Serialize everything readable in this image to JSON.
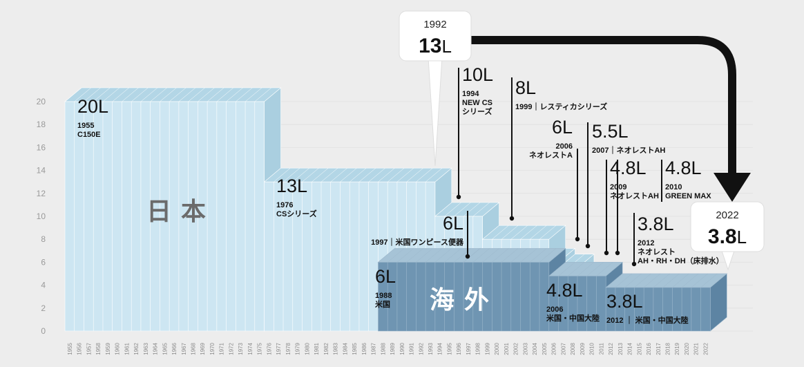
{
  "chart_data": {
    "type": "bar",
    "ylim": [
      0,
      22
    ],
    "yticks": [
      0,
      2,
      4,
      6,
      8,
      10,
      12,
      14,
      16,
      18,
      20
    ],
    "years": [
      "1955",
      "1956",
      "1957",
      "1958",
      "1959",
      "1960",
      "1961",
      "1962",
      "1963",
      "1964",
      "1965",
      "1966",
      "1967",
      "1968",
      "1969",
      "1970",
      "1971",
      "1972",
      "1973",
      "1974",
      "1975",
      "1976",
      "1977",
      "1978",
      "1979",
      "1980",
      "1981",
      "1982",
      "1983",
      "1984",
      "1985",
      "1986",
      "1987",
      "1988",
      "1989",
      "1990",
      "1991",
      "1992",
      "1993",
      "1994",
      "1995",
      "1996",
      "1997",
      "1998",
      "1999",
      "2000",
      "2001",
      "2002",
      "2003",
      "2004",
      "2005",
      "2006",
      "2007",
      "2008",
      "2009",
      "2010",
      "2011",
      "2012",
      "2013",
      "2014",
      "2015",
      "2016",
      "2017",
      "2018",
      "2019",
      "2020",
      "2021",
      "2022"
    ],
    "series": [
      {
        "name": "日本",
        "segments": [
          {
            "from": 1955,
            "to": 1975,
            "value": 20
          },
          {
            "from": 1976,
            "to": 1993,
            "value": 13
          },
          {
            "from": 1994,
            "to": 1998,
            "value": 10
          },
          {
            "from": 1999,
            "to": 2005,
            "value": 8
          },
          {
            "from": 2006,
            "to": 2006,
            "value": 6
          },
          {
            "from": 2007,
            "to": 2008,
            "value": 5.5
          },
          {
            "from": 2009,
            "to": 2009,
            "value": 4.8
          },
          {
            "from": 2010,
            "to": 2011,
            "value": 4.8
          },
          {
            "from": 2012,
            "to": 2022,
            "value": 3.8
          }
        ]
      },
      {
        "name": "海外",
        "segments": [
          {
            "from": 1988,
            "to": 1996,
            "value": 6
          },
          {
            "from": 1997,
            "to": 2005,
            "value": 6
          },
          {
            "from": 2006,
            "to": 2011,
            "value": 4.8
          },
          {
            "from": 2012,
            "to": 2022,
            "value": 3.8
          }
        ]
      }
    ]
  },
  "annotations": {
    "japan": [
      {
        "value_label": "20L",
        "detail": [
          "1955",
          "C150E"
        ]
      },
      {
        "value_label": "13L",
        "detail": [
          "1976",
          "CSシリーズ"
        ]
      },
      {
        "value_label": "10L",
        "detail": [
          "1994",
          "NEW CS",
          "シリーズ"
        ]
      },
      {
        "value_label": "8L",
        "detail": [
          "1999｜レスティカシリーズ"
        ]
      },
      {
        "value_label": "6L",
        "detail": [
          "2006",
          "ネオレストA"
        ]
      },
      {
        "value_label": "5.5L",
        "detail": [
          "2007｜ネオレストAH"
        ]
      },
      {
        "value_label": "4.8L",
        "detail": [
          "2009",
          "ネオレストAH"
        ]
      },
      {
        "value_label": "4.8L",
        "detail": [
          "2010",
          "GREEN MAX"
        ]
      },
      {
        "value_label": "3.8L",
        "detail": [
          "2012",
          "ネオレスト",
          "AH・RH・DH（床排水）"
        ]
      }
    ],
    "overseas": [
      {
        "value_label": "6L",
        "detail": [
          "1988",
          "米国"
        ]
      },
      {
        "value_label": "6L",
        "detail": [
          "1997｜米国ワンピース便器"
        ]
      },
      {
        "value_label": "4.8L",
        "detail": [
          "2006",
          "米国・中国大陸"
        ]
      },
      {
        "value_label": "3.8L",
        "detail": [
          "2012 ｜ 米国・中国大陸"
        ]
      }
    ],
    "region_labels": {
      "japan": "日本",
      "overseas": "海外"
    },
    "callout_start": {
      "year": "1992",
      "value_num": "13",
      "unit": "L"
    },
    "callout_end": {
      "year": "2022",
      "value_num": "3.8",
      "unit": "L"
    }
  },
  "colors": {
    "japan_fill": "#cde6f2",
    "japan_top": "#b3d6e6",
    "japan_side": "#aacfe0",
    "overseas_fill": "#6f95b2",
    "overseas_top": "#a6c3d6",
    "overseas_side": "#5d84a3",
    "arrow": "#111111"
  }
}
